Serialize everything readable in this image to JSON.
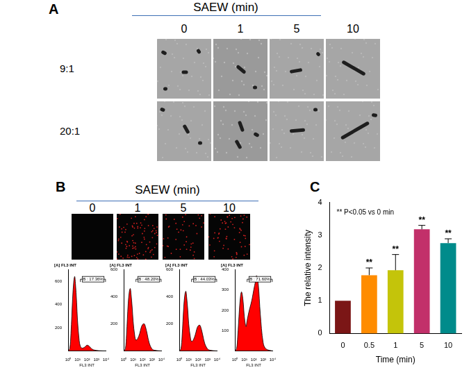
{
  "panels": {
    "A": {
      "label": "A",
      "title": "SAEW (min)",
      "columns": [
        "0",
        "1",
        "5",
        "10"
      ],
      "rows": [
        "9:1",
        "20:1"
      ]
    },
    "B": {
      "label": "B",
      "title": "SAEW (min)",
      "columns": [
        "0",
        "1",
        "5",
        "10"
      ]
    },
    "C": {
      "label": "C"
    }
  },
  "chart_data": [
    {
      "type": "line",
      "title": "[A] FL3 INT",
      "x_label": "FL3 INT",
      "log": "x",
      "x": [
        1,
        1.5,
        2,
        3,
        4,
        5,
        6,
        8,
        10,
        15,
        20,
        30,
        50,
        70,
        100,
        150,
        200,
        300,
        500,
        1000,
        2000,
        10000
      ],
      "values": [
        0,
        20,
        150,
        450,
        600,
        640,
        580,
        420,
        260,
        90,
        40,
        25,
        30,
        40,
        50,
        45,
        35,
        20,
        10,
        5,
        2,
        0
      ],
      "color": "#ff0000",
      "xlim": [
        1,
        10000
      ],
      "xticks": [
        {
          "value": 1,
          "label": "10⁰"
        },
        {
          "value": 10,
          "label": "10¹"
        },
        {
          "value": 100,
          "label": "10²"
        },
        {
          "value": 1000,
          "label": "10³"
        },
        {
          "value": 10000,
          "label": "10⁴"
        }
      ],
      "ylim": [
        0,
        700
      ],
      "yticks": [
        0,
        200,
        400,
        600
      ],
      "annotation": "B : 17.36%",
      "gate": [
        20,
        10000
      ]
    },
    {
      "type": "line",
      "title": "[A] FL3 INT",
      "x_label": "FL3 INT",
      "log": "x",
      "x": [
        1,
        1.5,
        2,
        3,
        4,
        5,
        6,
        8,
        10,
        15,
        20,
        30,
        50,
        70,
        100,
        150,
        200,
        300,
        500,
        1000,
        2000,
        10000
      ],
      "values": [
        0,
        15,
        120,
        350,
        440,
        460,
        420,
        320,
        220,
        110,
        80,
        90,
        130,
        170,
        195,
        200,
        180,
        130,
        60,
        15,
        5,
        0
      ],
      "color": "#ff0000",
      "xlim": [
        1,
        10000
      ],
      "xticks": [
        {
          "value": 1,
          "label": "10⁰"
        },
        {
          "value": 10,
          "label": "10¹"
        },
        {
          "value": 100,
          "label": "10²"
        },
        {
          "value": 1000,
          "label": "10³"
        },
        {
          "value": 10000,
          "label": "10⁴"
        }
      ],
      "ylim": [
        0,
        600
      ],
      "yticks": [
        0,
        200,
        400,
        600
      ],
      "annotation": "B : 48.20%",
      "gate": [
        20,
        10000
      ]
    },
    {
      "type": "line",
      "title": "[A] FL3 INT",
      "x_label": "FL3 INT",
      "log": "x",
      "x": [
        1,
        1.5,
        2,
        3,
        4,
        5,
        6,
        8,
        10,
        15,
        20,
        30,
        50,
        70,
        100,
        150,
        200,
        300,
        500,
        1000,
        2000,
        10000
      ],
      "values": [
        0,
        15,
        110,
        330,
        420,
        440,
        400,
        300,
        200,
        100,
        70,
        80,
        120,
        160,
        185,
        190,
        170,
        120,
        55,
        15,
        5,
        0
      ],
      "color": "#ff0000",
      "xlim": [
        1,
        10000
      ],
      "xticks": [
        {
          "value": 1,
          "label": "10⁰"
        },
        {
          "value": 10,
          "label": "10¹"
        },
        {
          "value": 100,
          "label": "10²"
        },
        {
          "value": 1000,
          "label": "10³"
        },
        {
          "value": 10000,
          "label": "10⁴"
        }
      ],
      "ylim": [
        0,
        600
      ],
      "yticks": [
        0,
        200,
        400,
        600
      ],
      "annotation": "B : 44.03%",
      "gate": [
        20,
        10000
      ]
    },
    {
      "type": "line",
      "title": "[A] FL3 INT",
      "x_label": "FL3 INT",
      "log": "x",
      "x": [
        1,
        1.5,
        2,
        3,
        4,
        5,
        6,
        8,
        10,
        15,
        20,
        30,
        50,
        70,
        100,
        150,
        200,
        300,
        500,
        1000,
        2000,
        10000
      ],
      "values": [
        0,
        10,
        70,
        200,
        270,
        290,
        280,
        230,
        170,
        120,
        150,
        190,
        230,
        260,
        300,
        340,
        370,
        330,
        180,
        40,
        10,
        0
      ],
      "color": "#ff0000",
      "xlim": [
        1,
        10000
      ],
      "xticks": [
        {
          "value": 1,
          "label": "10⁰"
        },
        {
          "value": 10,
          "label": "10¹"
        },
        {
          "value": 100,
          "label": "10²"
        },
        {
          "value": 1000,
          "label": "10³"
        },
        {
          "value": 10000,
          "label": "10⁴"
        }
      ],
      "ylim": [
        0,
        400
      ],
      "yticks": [
        0,
        100,
        200,
        300,
        400
      ],
      "annotation": "B : 71.60%",
      "gate": [
        20,
        10000
      ]
    },
    {
      "type": "bar",
      "categories": [
        "0",
        "0.5",
        "1",
        "5",
        "10"
      ],
      "values": [
        1,
        1.78,
        1.93,
        3.18,
        2.76
      ],
      "errors": [
        0,
        0.22,
        0.48,
        0.12,
        0.13
      ],
      "colors": [
        "#7b1616",
        "#ff8c00",
        "#c4c40a",
        "#c2306a",
        "#008b8b"
      ],
      "x_label": "Time (min)",
      "y_label": "The relative intensity",
      "ylim": [
        0,
        4
      ],
      "yticks": [
        0,
        1,
        2,
        3,
        4
      ],
      "grid": false,
      "annotation": "** P<0.05 vs 0 min",
      "marks": [
        null,
        "**",
        "**",
        "**",
        "**"
      ]
    }
  ]
}
